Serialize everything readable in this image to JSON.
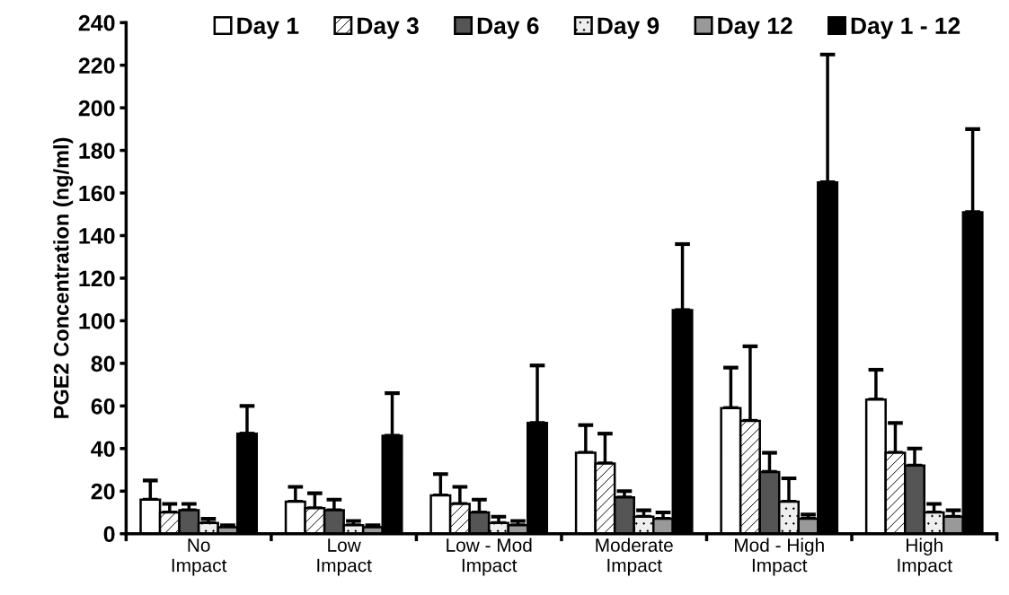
{
  "chart_data": {
    "type": "bar",
    "ylabel": "PGE2 Concentration (ng/ml)",
    "categories": [
      "No\nImpact",
      "Low\nImpact",
      "Low - Mod\nImpact",
      "Moderate\nImpact",
      "Mod - High\nImpact",
      "High\nImpact"
    ],
    "series": [
      {
        "name": "Day 1",
        "color": "#ffffff",
        "values": [
          16,
          15,
          18,
          38,
          59,
          63
        ],
        "errors": [
          [
            16,
            25
          ],
          [
            15,
            22
          ],
          [
            18,
            28
          ],
          [
            38,
            51
          ],
          [
            59,
            78
          ],
          [
            63,
            77
          ]
        ]
      },
      {
        "name": "Day 3",
        "color": "#ffffff",
        "values": [
          10,
          12,
          14,
          33,
          53,
          38
        ],
        "errors": [
          [
            10,
            14
          ],
          [
            12,
            19
          ],
          [
            14,
            22
          ],
          [
            33,
            47
          ],
          [
            53,
            88
          ],
          [
            38,
            52
          ]
        ]
      },
      {
        "name": "Day 6",
        "color": "#555555",
        "values": [
          11,
          11,
          10,
          17,
          29,
          32
        ],
        "errors": [
          [
            11,
            14
          ],
          [
            11,
            16
          ],
          [
            10,
            16
          ],
          [
            17,
            20
          ],
          [
            29,
            38
          ],
          [
            32,
            40
          ]
        ]
      },
      {
        "name": "Day 9",
        "color": "#eeeeee",
        "values": [
          5,
          4,
          5,
          8,
          15,
          10
        ],
        "errors": [
          [
            5,
            7
          ],
          [
            4,
            6
          ],
          [
            5,
            8
          ],
          [
            8,
            11
          ],
          [
            15,
            26
          ],
          [
            10,
            14
          ]
        ]
      },
      {
        "name": "Day 12",
        "color": "#999999",
        "values": [
          3,
          3,
          4,
          7,
          7,
          8
        ],
        "errors": [
          [
            3,
            4
          ],
          [
            3,
            4
          ],
          [
            4,
            6
          ],
          [
            7,
            10
          ],
          [
            7,
            9
          ],
          [
            8,
            11
          ]
        ]
      },
      {
        "name": "Day 1 - 12",
        "color": "#000000",
        "values": [
          47,
          46,
          52,
          105,
          165,
          151
        ],
        "errors": [
          [
            47,
            60
          ],
          [
            46,
            66
          ],
          [
            52,
            79
          ],
          [
            105,
            136
          ],
          [
            165,
            225
          ],
          [
            151,
            190
          ]
        ]
      }
    ],
    "ylim": [
      0,
      240
    ],
    "yticks": [
      0,
      20,
      40,
      60,
      80,
      100,
      120,
      140,
      160,
      180,
      200,
      220,
      240
    ],
    "grid": false,
    "legend": "top"
  }
}
